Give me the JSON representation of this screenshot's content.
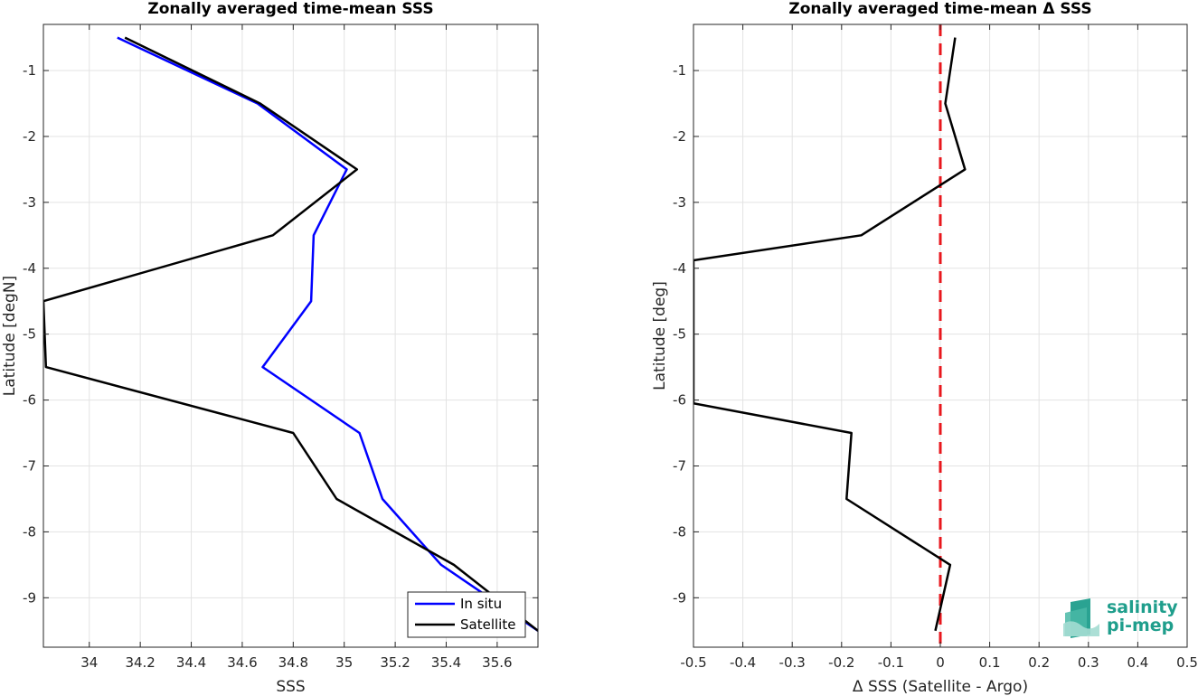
{
  "chart_data": [
    {
      "type": "line",
      "title": "Zonally averaged time-mean SSS",
      "xlabel": "SSS",
      "ylabel": "Latitude [degN]",
      "xlim": [
        33.82,
        35.76
      ],
      "ylim": [
        -9.75,
        -0.3
      ],
      "xticks": [
        34,
        34.2,
        34.4,
        34.6,
        34.8,
        35,
        35.2,
        35.4,
        35.6
      ],
      "xtick_labels": [
        "34",
        "34.2",
        "34.4",
        "34.6",
        "34.8",
        "35",
        "35.2",
        "35.4",
        "35.6"
      ],
      "yticks": [
        -1,
        -2,
        -3,
        -4,
        -5,
        -6,
        -7,
        -8,
        -9
      ],
      "ytick_labels": [
        "-1",
        "-2",
        "-3",
        "-4",
        "-5",
        "-6",
        "-7",
        "-8",
        "-9"
      ],
      "grid": true,
      "legend_position": "bottom-right",
      "series": [
        {
          "name": "In situ",
          "color": "#0000ff",
          "x": [
            34.11,
            34.66,
            35.01,
            34.88,
            34.87,
            34.68,
            35.06,
            35.15,
            35.38,
            35.76
          ],
          "y": [
            -0.5,
            -1.5,
            -2.5,
            -3.5,
            -4.5,
            -5.5,
            -6.5,
            -7.5,
            -8.5,
            -9.5
          ]
        },
        {
          "name": "Satellite",
          "color": "#000000",
          "x": [
            34.14,
            34.67,
            35.05,
            34.72,
            33.82,
            33.83,
            34.8,
            34.97,
            35.43,
            35.76
          ],
          "y": [
            -0.5,
            -1.5,
            -2.5,
            -3.5,
            -4.5,
            -5.5,
            -6.5,
            -7.5,
            -8.5,
            -9.5
          ]
        }
      ]
    },
    {
      "type": "line",
      "title": "Zonally averaged time-mean Δ SSS",
      "xlabel": "Δ SSS (Satellite - Argo)",
      "ylabel": "Latitude [deg]",
      "xlim": [
        -0.5,
        0.5
      ],
      "ylim": [
        -9.75,
        -0.3
      ],
      "xticks": [
        -0.5,
        -0.4,
        -0.3,
        -0.2,
        -0.1,
        0,
        0.1,
        0.2,
        0.3,
        0.4,
        0.5
      ],
      "xtick_labels": [
        "-0.5",
        "-0.4",
        "-0.3",
        "-0.2",
        "-0.1",
        "0",
        "0.1",
        "0.2",
        "0.3",
        "0.4",
        "0.5"
      ],
      "yticks": [
        -1,
        -2,
        -3,
        -4,
        -5,
        -6,
        -7,
        -8,
        -9
      ],
      "ytick_labels": [
        "-1",
        "-2",
        "-3",
        "-4",
        "-5",
        "-6",
        "-7",
        "-8",
        "-9"
      ],
      "grid": true,
      "reference_line": {
        "x": 0,
        "color": "#e8171d",
        "style": "dashed"
      },
      "series": [
        {
          "color": "#000000",
          "x": [
            0.03,
            0.01,
            0.05,
            -0.16,
            -0.5,
            -0.5,
            -0.18,
            -0.19,
            0.02,
            -0.01
          ],
          "y": [
            -0.5,
            -1.5,
            -2.5,
            -3.5,
            -3.88,
            -6.05,
            -6.5,
            -7.5,
            -8.5,
            -9.5
          ]
        }
      ]
    }
  ],
  "logo": {
    "line1": "salinity",
    "line2": "pi-mep",
    "color": "#1f9e8c"
  }
}
